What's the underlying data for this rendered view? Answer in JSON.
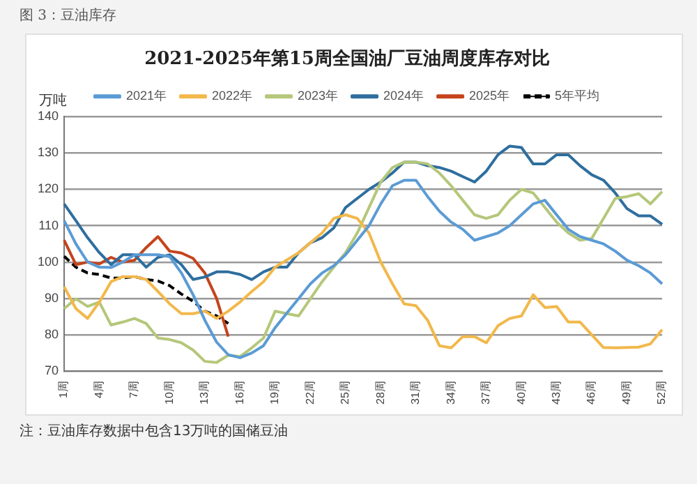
{
  "chart_data": {
    "type": "line",
    "title": "2021-2025年第15周全国油厂豆油周度库存对比",
    "ylabel": "万吨",
    "annotations": [
      "图 3：豆油库存",
      "注：豆油库存数据中包含13万吨的国储豆油"
    ],
    "categories": [
      "1周",
      null,
      null,
      "4周",
      null,
      null,
      "7周",
      null,
      null,
      "10周",
      null,
      null,
      "13周",
      null,
      null,
      "16周",
      null,
      null,
      "19周",
      null,
      null,
      "22周",
      null,
      null,
      "25周",
      null,
      null,
      "28周",
      null,
      null,
      "31周",
      null,
      null,
      "34周",
      null,
      null,
      "37周",
      null,
      null,
      "40周",
      null,
      null,
      "43周",
      null,
      null,
      "46周",
      null,
      null,
      "49周",
      null,
      null,
      "52周"
    ],
    "series": [
      {
        "name": "2021年",
        "color": "#5b9bd5",
        "values": [
          111.4,
          105,
          100,
          98.6,
          98.5,
          100,
          102,
          102,
          102,
          101.5,
          97,
          91,
          84,
          78,
          74.5,
          73.7,
          75,
          77,
          82,
          86,
          90,
          94,
          97,
          99,
          102,
          106,
          110,
          116,
          121,
          122.5,
          122.5,
          118,
          114,
          111,
          109,
          106,
          107,
          108,
          110,
          113,
          116,
          117,
          113,
          109,
          107,
          106,
          105,
          103,
          100.5,
          99,
          97,
          94
        ]
      },
      {
        "name": "2022年",
        "color": "#f2b84b",
        "values": [
          93.2,
          87.2,
          84.5,
          89,
          94.6,
          96,
          96,
          95.2,
          91.9,
          88.5,
          85.8,
          85.8,
          86.5,
          84.5,
          86.5,
          89,
          91.9,
          94.6,
          98.6,
          100.6,
          102.6,
          105.3,
          108,
          112,
          113,
          112,
          108,
          100,
          94,
          88.5,
          88,
          84,
          77,
          76.4,
          79.5,
          79.5,
          77.8,
          82.5,
          84.5,
          85.2,
          91,
          87.5,
          87.8,
          83.5,
          83.5,
          80,
          76.5,
          76.4,
          76.5,
          76.6,
          77.5,
          81.4
        ]
      },
      {
        "name": "2023年",
        "color": "#b5c77a",
        "values": [
          87.2,
          89.9,
          87.8,
          89,
          82.7,
          83.5,
          84.5,
          83.1,
          79.1,
          78.7,
          77.8,
          75.8,
          72.7,
          72.4,
          74.4,
          74,
          76.4,
          79.1,
          86.5,
          85.8,
          85.2,
          89.9,
          94.6,
          98.6,
          102.6,
          108,
          115,
          122,
          126,
          127.5,
          127.5,
          127,
          124.5,
          121,
          117,
          113,
          112,
          113,
          117,
          120,
          119,
          115,
          111,
          108,
          106,
          106.5,
          112,
          117.5,
          118,
          118.8,
          116,
          119.4
        ]
      },
      {
        "name": "2024年",
        "color": "#2e6e9e",
        "values": [
          116,
          111.4,
          106.7,
          102.6,
          99.3,
          102,
          102,
          98.6,
          101.3,
          102,
          99.3,
          95.2,
          95.9,
          97.3,
          97.3,
          96.6,
          95.2,
          97.3,
          98.6,
          98.6,
          102.6,
          105.3,
          106.7,
          109.4,
          115,
          117.5,
          120,
          122,
          124.5,
          127.5,
          127.5,
          126.5,
          126,
          125,
          123.5,
          122,
          125,
          129.5,
          131.9,
          131.5,
          127,
          127,
          129.5,
          129.5,
          126.5,
          124,
          122.5,
          119,
          114.7,
          112.7,
          112.7,
          110.4
        ]
      },
      {
        "name": "2025年",
        "color": "#c5441c",
        "values": [
          106,
          99.3,
          100,
          99.5,
          101.3,
          100,
          100.5,
          104,
          107,
          103,
          102.5,
          101,
          97,
          90,
          79.5,
          null,
          null,
          null,
          null,
          null,
          null,
          null,
          null,
          null,
          null,
          null,
          null,
          null,
          null,
          null,
          null,
          null,
          null,
          null,
          null,
          null,
          null,
          null,
          null,
          null,
          null,
          null,
          null,
          null,
          null,
          null,
          null,
          null,
          null,
          null,
          null,
          null
        ]
      },
      {
        "name": "5年平均",
        "color": "#000000",
        "line_style": "dashed",
        "values": [
          101.6,
          98.6,
          97,
          96.6,
          95.6,
          95.6,
          96,
          95.2,
          94.8,
          93.5,
          91.2,
          89.2,
          86.5,
          85.2,
          83.1,
          null,
          null,
          null,
          null,
          null,
          null,
          null,
          null,
          null,
          null,
          null,
          null,
          null,
          null,
          null,
          null,
          null,
          null,
          null,
          null,
          null,
          null,
          null,
          null,
          null,
          null,
          null,
          null,
          null,
          null,
          null,
          null,
          null,
          null,
          null,
          null,
          null
        ]
      }
    ],
    "ylim": [
      70,
      140
    ],
    "yticks": [
      70,
      80,
      90,
      100,
      110,
      120,
      130,
      140
    ],
    "grid": "y",
    "legend": "top",
    "marker": "none"
  }
}
